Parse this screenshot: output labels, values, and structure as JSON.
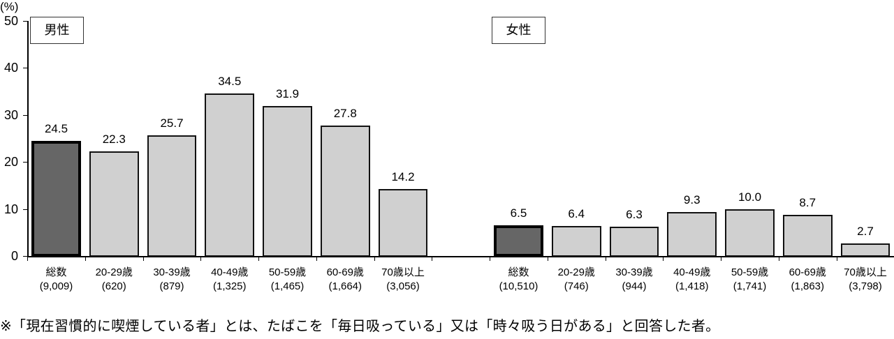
{
  "chart_data": {
    "type": "bar",
    "title": "",
    "ylabel": "(%)",
    "xlabel": "",
    "ylim": [
      0,
      50
    ],
    "yticks": [
      0,
      10,
      20,
      30,
      40,
      50
    ],
    "grid": false,
    "panels": [
      {
        "name": "男性",
        "categories": [
          "総数",
          "20-29歳",
          "30-39歳",
          "40-49歳",
          "50-59歳",
          "60-69歳",
          "70歳以上"
        ],
        "sample_sizes": [
          "(9,009)",
          "(620)",
          "(879)",
          "(1,325)",
          "(1,465)",
          "(1,664)",
          "(3,056)"
        ],
        "values": [
          24.5,
          22.3,
          25.7,
          34.5,
          31.9,
          27.8,
          14.2
        ]
      },
      {
        "name": "女性",
        "categories": [
          "総数",
          "20-29歳",
          "30-39歳",
          "40-49歳",
          "50-59歳",
          "60-69歳",
          "70歳以上"
        ],
        "sample_sizes": [
          "(10,510)",
          "(746)",
          "(944)",
          "(1,418)",
          "(1,741)",
          "(1,863)",
          "(3,798)"
        ],
        "values": [
          6.5,
          6.4,
          6.3,
          9.3,
          10.0,
          8.7,
          2.7
        ]
      }
    ],
    "colors": {
      "total_fill": "#666666",
      "age_fill": "#d0d0d0",
      "border": "#000000"
    }
  },
  "y_axis": {
    "unit": "(%)",
    "ticks": [
      "0",
      "10",
      "20",
      "30",
      "40",
      "50"
    ]
  },
  "labels": {
    "male": "男性",
    "female": "女性",
    "male_values": [
      "24.5",
      "22.3",
      "25.7",
      "34.5",
      "31.9",
      "27.8",
      "14.2"
    ],
    "female_values": [
      "6.5",
      "6.4",
      "6.3",
      "9.3",
      "10.0",
      "8.7",
      "2.7"
    ]
  },
  "footnote": "※「現在習慣的に喫煙している者」とは、たばこを「毎日吸っている」又は「時々吸う日がある」と回答した者。"
}
